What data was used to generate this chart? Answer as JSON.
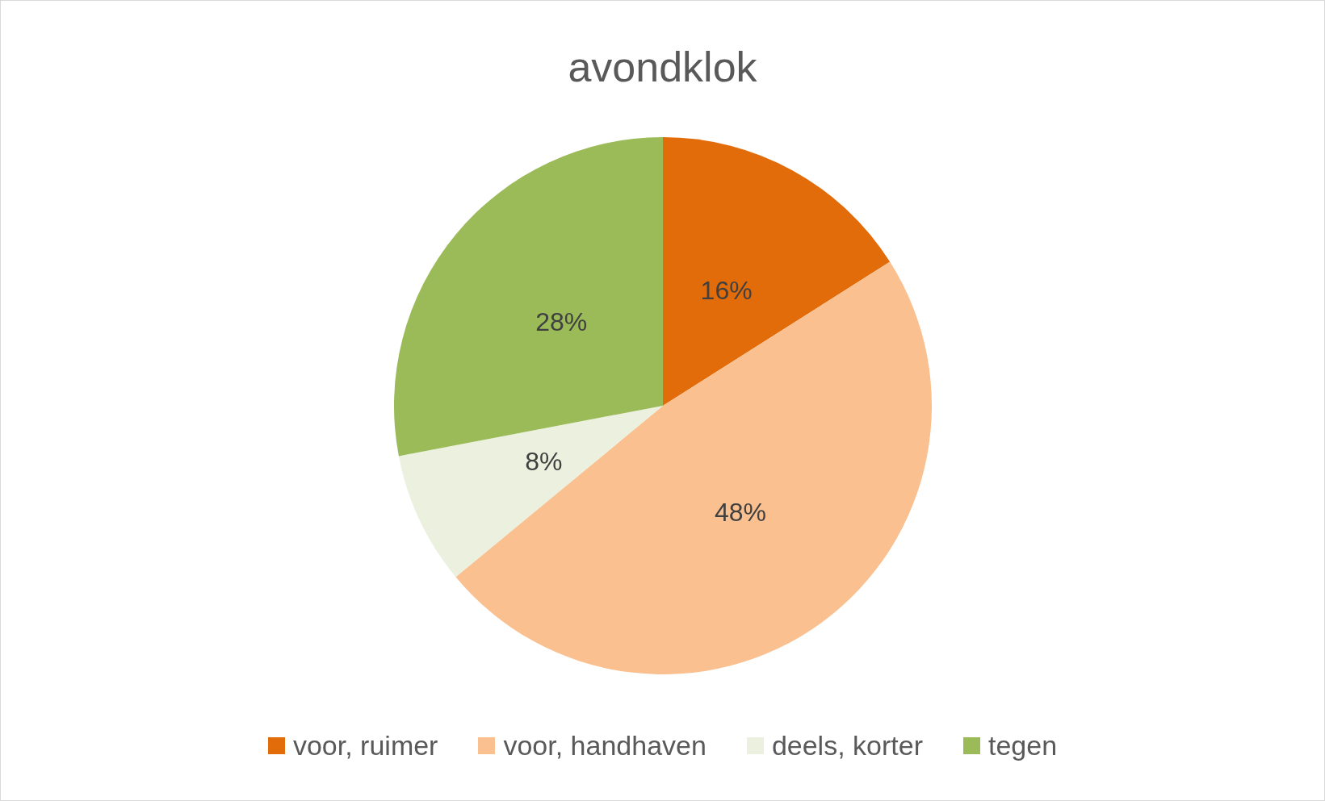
{
  "chart_data": {
    "type": "pie",
    "title": "avondklok",
    "categories": [
      "voor, ruimer",
      "voor, handhaven",
      "deels, korter",
      "tegen"
    ],
    "values": [
      16,
      48,
      8,
      28
    ],
    "colors": [
      "#e36c0a",
      "#fac090",
      "#ebf1de",
      "#9bbb59"
    ],
    "value_labels": [
      "16%",
      "48%",
      "8%",
      "28%"
    ],
    "legend": "bottom"
  }
}
